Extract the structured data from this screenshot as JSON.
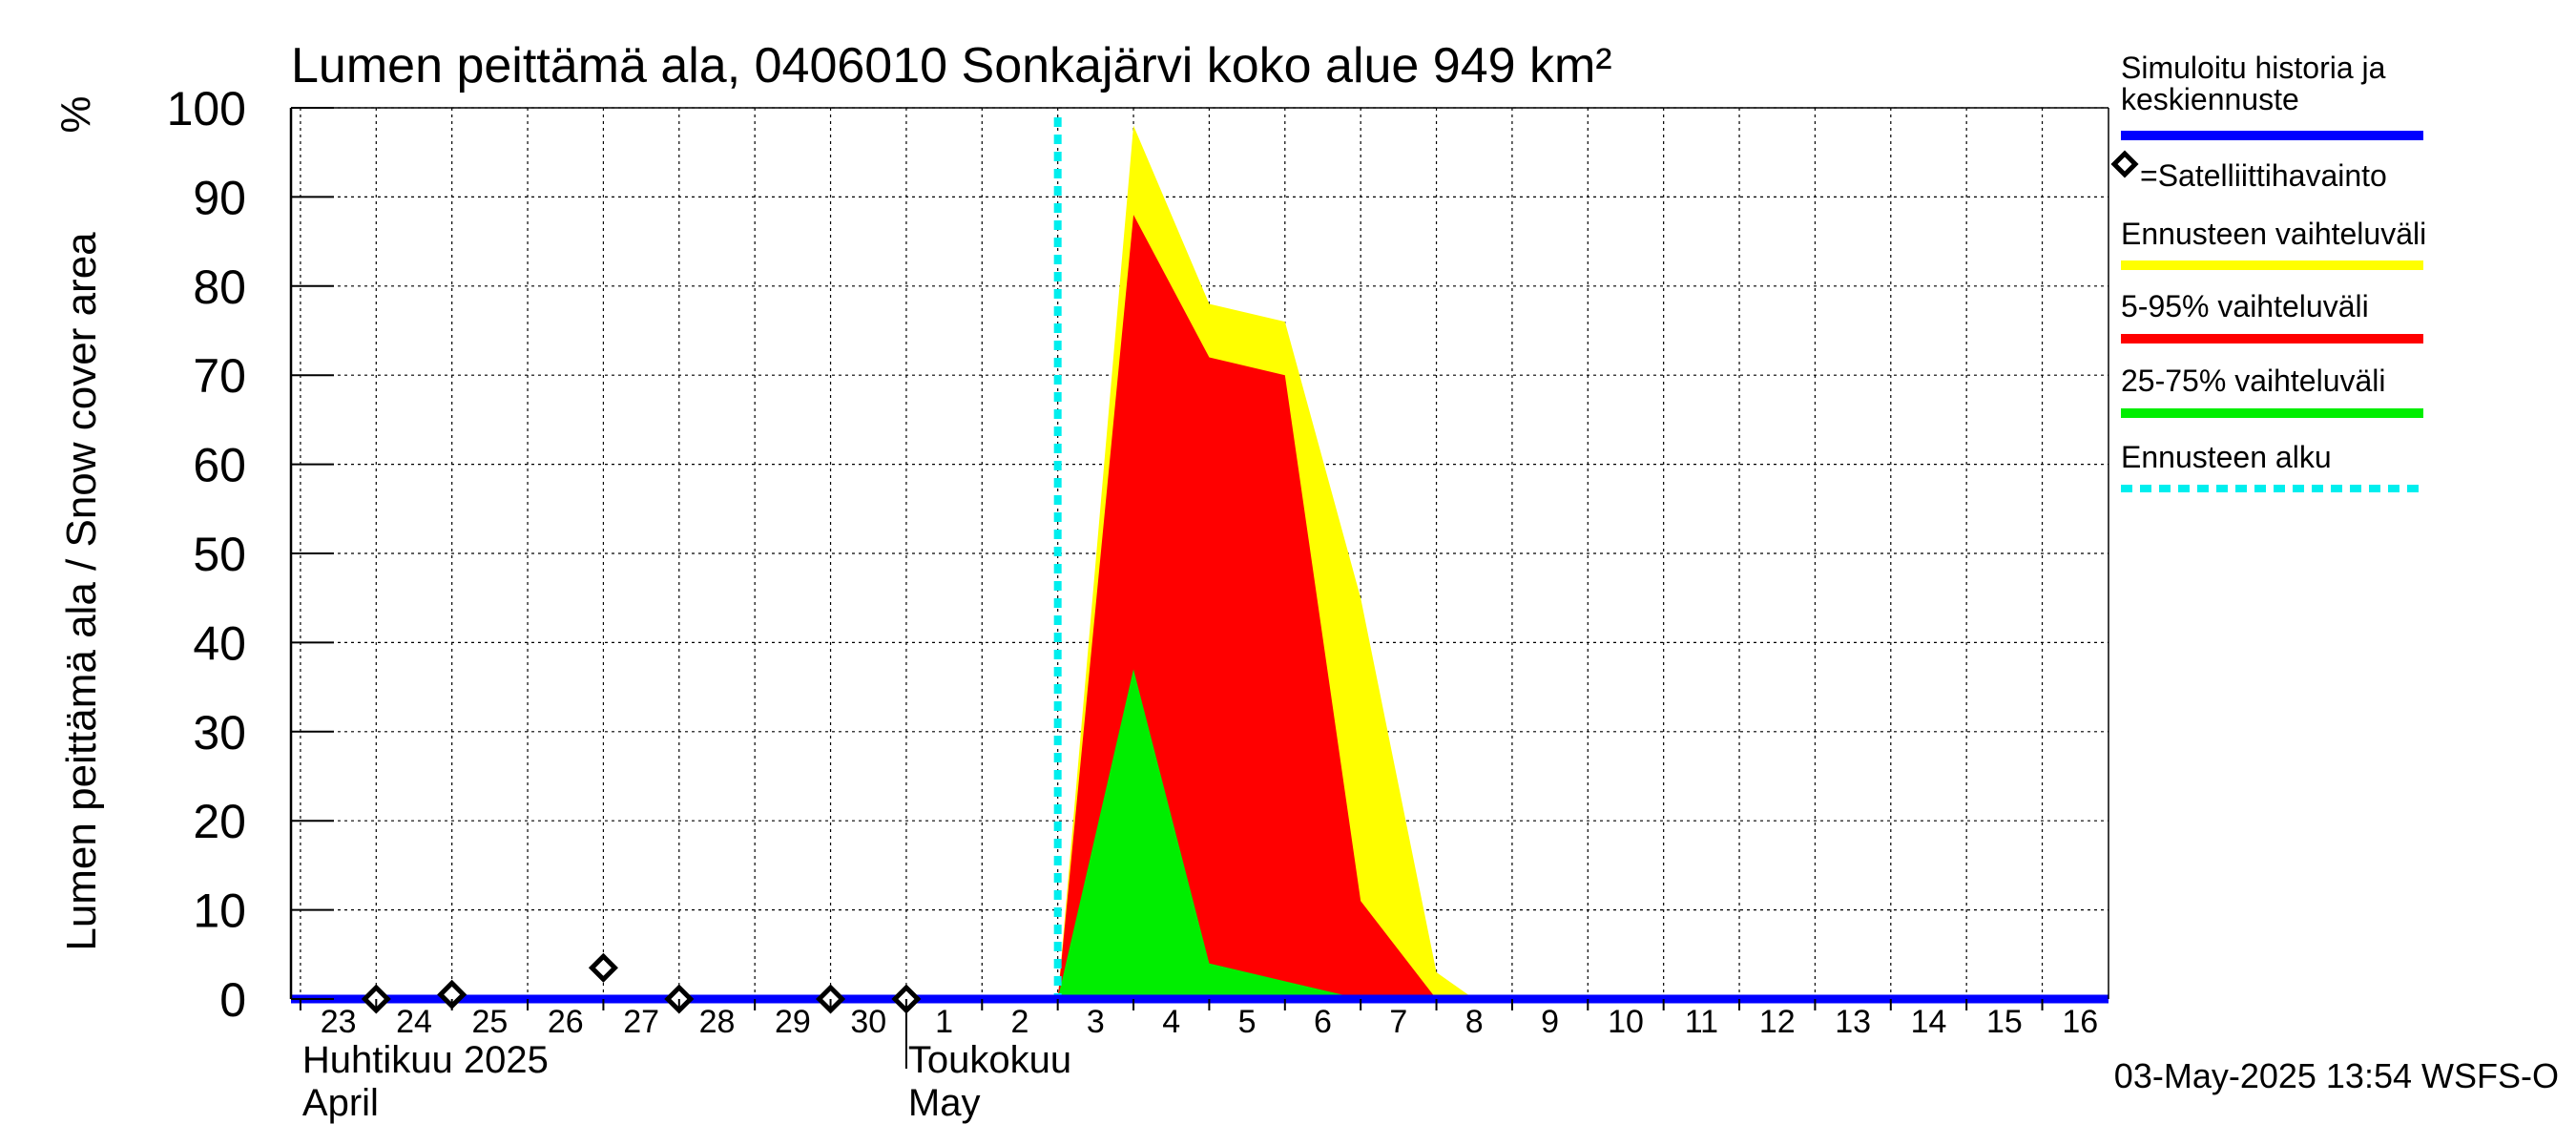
{
  "chart_data": {
    "type": "area",
    "title": "Lumen peittämä ala, 0406010 Sonkajärvi koko alue 949 km²",
    "ylabel": "Lumen peittämä ala / Snow cover area",
    "yunit": "%",
    "ylim": [
      0,
      100
    ],
    "yticks": [
      0,
      10,
      20,
      30,
      40,
      50,
      60,
      70,
      80,
      90,
      100
    ],
    "grid": true,
    "xlim": [
      "2025-04-22T21:00",
      "2025-05-16T21:00"
    ],
    "day_labels": [
      {
        "date": "2025-04-23",
        "label": "23"
      },
      {
        "date": "2025-04-24",
        "label": "24"
      },
      {
        "date": "2025-04-25",
        "label": "25"
      },
      {
        "date": "2025-04-26",
        "label": "26"
      },
      {
        "date": "2025-04-27",
        "label": "27"
      },
      {
        "date": "2025-04-28",
        "label": "28"
      },
      {
        "date": "2025-04-29",
        "label": "29"
      },
      {
        "date": "2025-04-30",
        "label": "30"
      },
      {
        "date": "2025-05-01",
        "label": "1"
      },
      {
        "date": "2025-05-02",
        "label": "2"
      },
      {
        "date": "2025-05-03",
        "label": "3"
      },
      {
        "date": "2025-05-04",
        "label": "4"
      },
      {
        "date": "2025-05-05",
        "label": "5"
      },
      {
        "date": "2025-05-06",
        "label": "6"
      },
      {
        "date": "2025-05-07",
        "label": "7"
      },
      {
        "date": "2025-05-08",
        "label": "8"
      },
      {
        "date": "2025-05-09",
        "label": "9"
      },
      {
        "date": "2025-05-10",
        "label": "10"
      },
      {
        "date": "2025-05-11",
        "label": "11"
      },
      {
        "date": "2025-05-12",
        "label": "12"
      },
      {
        "date": "2025-05-13",
        "label": "13"
      },
      {
        "date": "2025-05-14",
        "label": "14"
      },
      {
        "date": "2025-05-15",
        "label": "15"
      },
      {
        "date": "2025-05-16",
        "label": "16"
      }
    ],
    "month_labels": [
      {
        "date": "2025-04-23",
        "line1": "Huhtikuu  2025",
        "line2": "April"
      },
      {
        "date": "2025-05-01",
        "line1": "Toukokuu",
        "line2": "May"
      }
    ],
    "month_boundary": "2025-05-01",
    "forecast_start": "2025-05-03T00:00",
    "series": [
      {
        "name": "Ennusteen vaihteluväli",
        "color": "#ffff00",
        "points": [
          [
            "2025-05-03T00:00",
            0
          ],
          [
            "2025-05-04T00:00",
            98
          ],
          [
            "2025-05-05T00:00",
            78
          ],
          [
            "2025-05-06T00:00",
            76
          ],
          [
            "2025-05-07T00:00",
            45
          ],
          [
            "2025-05-08T00:00",
            3
          ],
          [
            "2025-05-08T12:00",
            0
          ]
        ]
      },
      {
        "name": "5-95% vaihteluväli",
        "color": "#ff0000",
        "points": [
          [
            "2025-05-03T00:00",
            0
          ],
          [
            "2025-05-04T00:00",
            88
          ],
          [
            "2025-05-05T00:00",
            72
          ],
          [
            "2025-05-06T00:00",
            70
          ],
          [
            "2025-05-07T00:00",
            11
          ],
          [
            "2025-05-08T00:00",
            0
          ]
        ]
      },
      {
        "name": "25-75% vaihteluväli",
        "color": "#00ee00",
        "points": [
          [
            "2025-05-03T00:00",
            0
          ],
          [
            "2025-05-04T00:00",
            37
          ],
          [
            "2025-05-05T00:00",
            4
          ],
          [
            "2025-05-06T00:00",
            2
          ],
          [
            "2025-05-07T00:00",
            0
          ]
        ]
      },
      {
        "name": "Simuloitu historia ja keskiennuste",
        "color": "#0000ff",
        "points": [
          [
            "2025-04-22T21:00",
            0
          ],
          [
            "2025-05-16T21:00",
            0
          ]
        ]
      }
    ],
    "observations": {
      "name": "=Satelliittihavainto",
      "points": [
        [
          "2025-04-24T00:00",
          0
        ],
        [
          "2025-04-25T00:00",
          0.5
        ],
        [
          "2025-04-27T00:00",
          3.5
        ],
        [
          "2025-04-28T00:00",
          0
        ],
        [
          "2025-04-30T00:00",
          0
        ],
        [
          "2025-05-01T00:00",
          0
        ]
      ]
    },
    "legend": {
      "placement": "right",
      "items": [
        {
          "type": "line",
          "lines": [
            "Simuloitu historia ja",
            "keskiennuste"
          ],
          "color": "#0000ff"
        },
        {
          "type": "marker",
          "lines": [
            "=Satelliittihavainto"
          ],
          "color": "#000000"
        },
        {
          "type": "line",
          "lines": [
            "Ennusteen vaihteluväli"
          ],
          "color": "#ffff00"
        },
        {
          "type": "line",
          "lines": [
            "5-95% vaihteluväli"
          ],
          "color": "#ff0000"
        },
        {
          "type": "line",
          "lines": [
            "25-75% vaihteluväli"
          ],
          "color": "#00ee00"
        },
        {
          "type": "dashed",
          "lines": [
            "Ennusteen alku"
          ],
          "color": "#00eeee"
        }
      ]
    },
    "footer": "03-May-2025 13:54 WSFS-O"
  }
}
